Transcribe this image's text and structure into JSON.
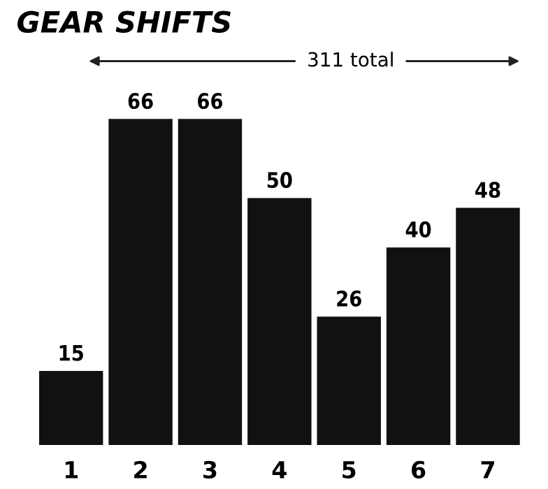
{
  "chart_data": {
    "type": "bar",
    "title": "GEAR SHIFTS",
    "annotations": [
      "311 total"
    ],
    "categories": [
      "1",
      "2",
      "3",
      "4",
      "5",
      "6",
      "7"
    ],
    "values": [
      15,
      66,
      66,
      50,
      26,
      40,
      48
    ],
    "color": "#111111",
    "data_labels": true,
    "grid": false,
    "legend": false
  }
}
